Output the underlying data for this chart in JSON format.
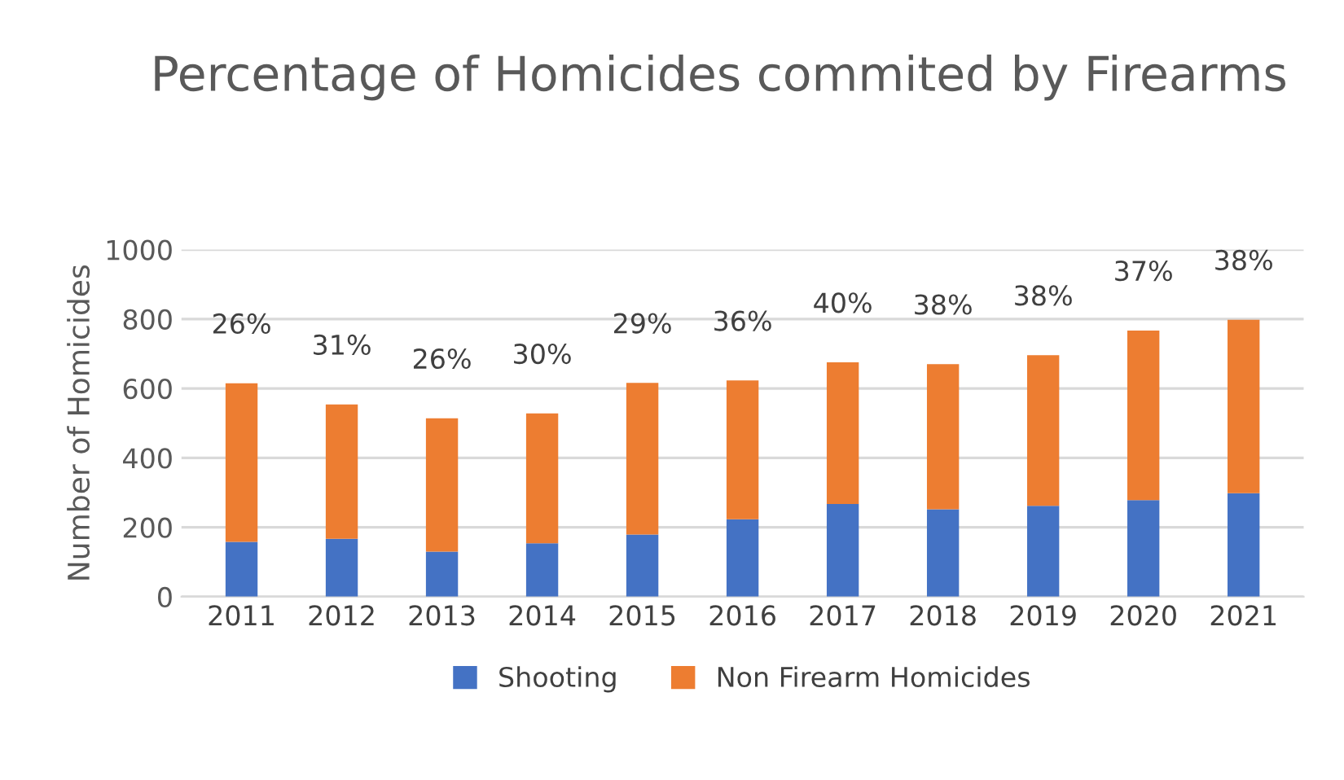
{
  "chart_data": {
    "type": "bar",
    "title": "Percentage of Homicides commited by Firearms",
    "ylabel": "Number of Homicides",
    "categories": [
      "2011",
      "2012",
      "2013",
      "2014",
      "2015",
      "2016",
      "2017",
      "2018",
      "2019",
      "2020",
      "2021"
    ],
    "stacked": true,
    "series": [
      {
        "name": "Shooting",
        "color": "#4472c4",
        "values": [
          158,
          167,
          130,
          154,
          179,
          223,
          267,
          252,
          262,
          278,
          298
        ]
      },
      {
        "name": "Non Firearm Homicides",
        "color": "#ed7d31",
        "values": [
          457,
          387,
          384,
          374,
          437,
          400,
          408,
          418,
          434,
          489,
          500
        ]
      }
    ],
    "annotations": [
      {
        "text": "26%",
        "x": "2011",
        "y": 615
      },
      {
        "text": "31%",
        "x": "2012",
        "y": 554
      },
      {
        "text": "26%",
        "x": "2013",
        "y": 514
      },
      {
        "text": "30%",
        "x": "2014",
        "y": 528
      },
      {
        "text": "29%",
        "x": "2015",
        "y": 616
      },
      {
        "text": "36%",
        "x": "2016",
        "y": 623
      },
      {
        "text": "40%",
        "x": "2017",
        "y": 675
      },
      {
        "text": "38%",
        "x": "2018",
        "y": 670
      },
      {
        "text": "38%",
        "x": "2019",
        "y": 696
      },
      {
        "text": "37%",
        "x": "2020",
        "y": 767
      },
      {
        "text": "38%",
        "x": "2021",
        "y": 798
      }
    ],
    "ylim": [
      0,
      1000
    ],
    "yticks": [
      0,
      200,
      400,
      600,
      800,
      1000
    ],
    "grid": "y",
    "legend": "bottom"
  }
}
